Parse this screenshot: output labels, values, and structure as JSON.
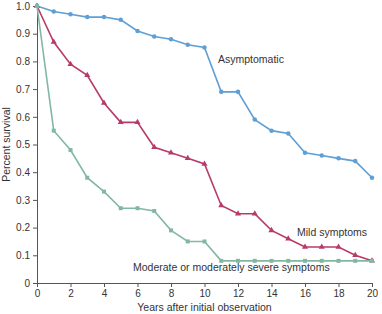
{
  "chart_data": {
    "type": "line",
    "x_label": "Years after initial observation",
    "y_label": "Percent survival",
    "x": [
      0,
      1,
      2,
      3,
      4,
      5,
      6,
      7,
      8,
      9,
      10,
      11,
      12,
      13,
      14,
      15,
      16,
      17,
      18,
      19,
      20
    ],
    "series": [
      {
        "name": "Asymptomatic",
        "color": "#5e9fd6",
        "marker": "circle",
        "values": [
          1.0,
          0.98,
          0.97,
          0.96,
          0.96,
          0.95,
          0.91,
          0.89,
          0.88,
          0.86,
          0.85,
          0.69,
          0.69,
          0.59,
          0.55,
          0.54,
          0.47,
          0.46,
          0.45,
          0.44,
          0.38
        ]
      },
      {
        "name": "Mild symptoms",
        "color": "#b83a6a",
        "marker": "triangle",
        "values": [
          1.0,
          0.87,
          0.79,
          0.75,
          0.65,
          0.58,
          0.58,
          0.49,
          0.47,
          0.45,
          0.43,
          0.28,
          0.25,
          0.25,
          0.19,
          0.16,
          0.13,
          0.13,
          0.13,
          0.1,
          0.08
        ]
      },
      {
        "name": "Moderate or moderately severe symptoms",
        "color": "#82b8a3",
        "marker": "square",
        "values": [
          1.0,
          0.55,
          0.48,
          0.38,
          0.33,
          0.27,
          0.27,
          0.26,
          0.19,
          0.15,
          0.15,
          0.08,
          0.08,
          0.08,
          0.08,
          0.08,
          0.08,
          0.08,
          0.08,
          0.08,
          0.08
        ]
      }
    ],
    "xlim": [
      0,
      20
    ],
    "xticks": [
      0,
      2,
      4,
      6,
      8,
      10,
      12,
      14,
      16,
      18,
      20
    ],
    "ylim": [
      0,
      1
    ],
    "yticks": [
      0,
      0.1,
      0.2,
      0.3,
      0.4,
      0.5,
      0.6,
      0.7,
      0.8,
      0.9,
      {
        "value": 1,
        "label": "1.0"
      }
    ],
    "grid": false
  }
}
